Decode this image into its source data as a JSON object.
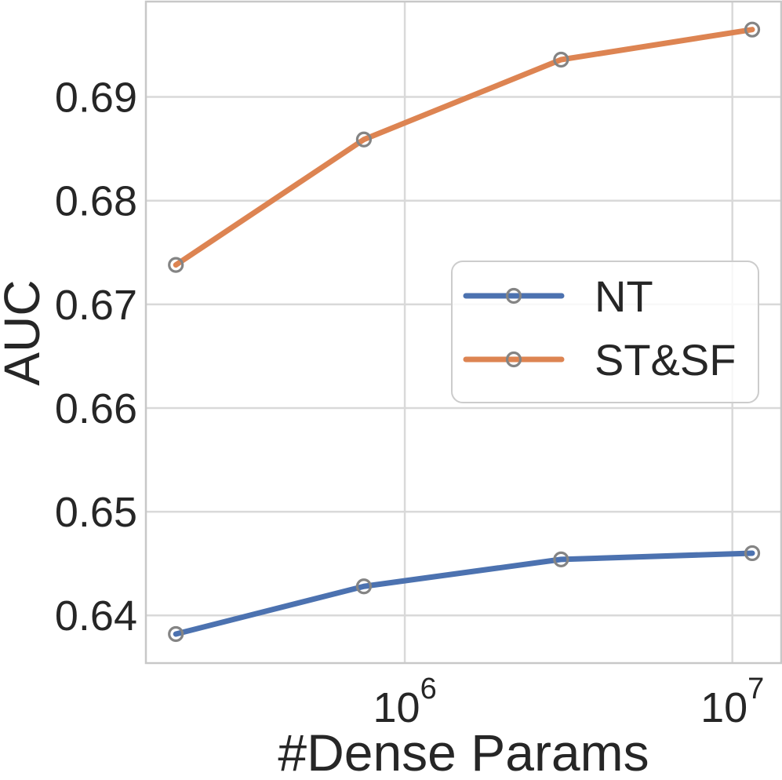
{
  "figure": {
    "background": "#ffffff"
  },
  "chart_data": {
    "type": "line",
    "title": "",
    "xlabel": "#Dense Params",
    "ylabel": "AUC",
    "x_scale": "log",
    "grid": true,
    "legend_position": "center-right",
    "x": [
      200000,
      750000,
      3000000,
      11500000
    ],
    "series": [
      {
        "name": "NT",
        "color": "#4C72B0",
        "values": [
          0.6382,
          0.6428,
          0.6454,
          0.646
        ]
      },
      {
        "name": "ST&SF",
        "color": "#DD8452",
        "values": [
          0.6738,
          0.6859,
          0.6936,
          0.6965
        ]
      }
    ],
    "marker": {
      "shape": "open-circle",
      "color": "#848484"
    },
    "xlim": [
      162000,
      14100000
    ],
    "ylim": [
      0.6354,
      0.6992
    ],
    "xticks": [
      {
        "base": "10",
        "sup": "6",
        "value": 1000000
      },
      {
        "base": "10",
        "sup": "7",
        "value": 10000000
      }
    ],
    "yticks": [
      {
        "label": "0.69",
        "value": 0.69
      },
      {
        "label": "0.68",
        "value": 0.68
      },
      {
        "label": "0.67",
        "value": 0.67
      },
      {
        "label": "0.66",
        "value": 0.66
      },
      {
        "label": "0.65",
        "value": 0.65
      },
      {
        "label": "0.64",
        "value": 0.64
      }
    ]
  }
}
